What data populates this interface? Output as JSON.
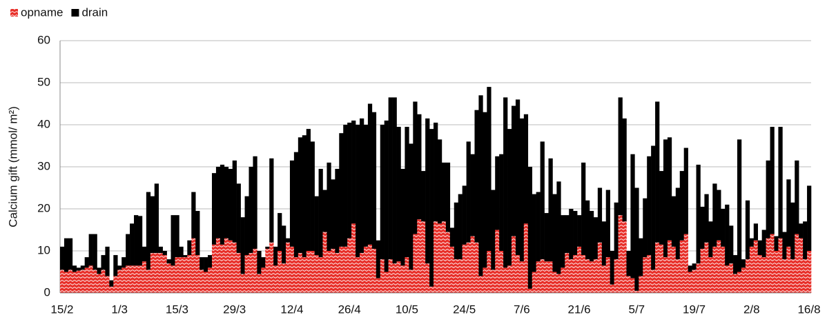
{
  "chart_data": {
    "type": "stacked_bar",
    "y_label": "Calcium gift (mmol/ m²)",
    "categories": [
      "15/2",
      null,
      null,
      null,
      null,
      null,
      null,
      null,
      null,
      null,
      null,
      null,
      null,
      null,
      "1/3",
      null,
      null,
      null,
      null,
      null,
      null,
      null,
      null,
      null,
      null,
      null,
      null,
      null,
      "15/3",
      null,
      null,
      null,
      null,
      null,
      null,
      null,
      null,
      null,
      null,
      null,
      null,
      null,
      "29/3",
      null,
      null,
      null,
      null,
      null,
      null,
      null,
      null,
      null,
      null,
      null,
      null,
      null,
      "12/4",
      null,
      null,
      null,
      null,
      null,
      null,
      null,
      null,
      null,
      null,
      null,
      null,
      null,
      "26/4",
      null,
      null,
      null,
      null,
      null,
      null,
      null,
      null,
      null,
      null,
      null,
      null,
      null,
      "10/5",
      null,
      null,
      null,
      null,
      null,
      null,
      null,
      null,
      null,
      null,
      null,
      null,
      null,
      "24/5",
      null,
      null,
      null,
      null,
      null,
      null,
      null,
      null,
      null,
      null,
      null,
      null,
      null,
      "7/6",
      null,
      null,
      null,
      null,
      null,
      null,
      null,
      null,
      null,
      null,
      null,
      null,
      null,
      "21/6",
      null,
      null,
      null,
      null,
      null,
      null,
      null,
      null,
      null,
      null,
      null,
      null,
      null,
      "5/7",
      null,
      null,
      null,
      null,
      null,
      null,
      null,
      null,
      null,
      null,
      null,
      null,
      null,
      "19/7",
      null,
      null,
      null,
      null,
      null,
      null,
      null,
      null,
      null,
      null,
      null,
      null,
      null,
      "2/8",
      null,
      null,
      null,
      null,
      null,
      null,
      null,
      null,
      null,
      null,
      null,
      null,
      null,
      "16/8"
    ],
    "series": [
      {
        "name": "opname",
        "color": "#e8302a",
        "values": [
          5.5,
          5,
          5.5,
          5,
          5.3,
          5.5,
          6,
          6.5,
          5.5,
          4.5,
          5.5,
          4,
          1.5,
          4,
          5.5,
          6,
          6.5,
          6.5,
          6.5,
          6.5,
          7.5,
          5.5,
          9.5,
          9.5,
          9.5,
          9,
          7,
          6.5,
          8.5,
          8.5,
          8.5,
          9,
          13,
          9,
          5.5,
          5,
          6,
          11.5,
          13,
          11.5,
          13,
          12.5,
          12,
          9.5,
          4.5,
          9,
          9.5,
          10.5,
          4.5,
          6,
          10.5,
          12,
          6.5,
          10,
          7,
          12,
          11,
          8.5,
          9.5,
          8.5,
          10,
          10,
          9,
          8.5,
          14.5,
          10,
          10.5,
          9.5,
          11,
          11,
          13,
          16.5,
          8.5,
          9.5,
          11,
          11.5,
          10.5,
          3.5,
          8,
          5,
          8,
          7,
          7.5,
          6.5,
          8.5,
          5.5,
          14,
          17.5,
          17,
          7,
          1.5,
          17,
          16.5,
          17,
          14.5,
          11,
          8,
          8,
          11.5,
          12,
          13.5,
          12,
          4,
          6,
          10,
          5.5,
          15,
          10,
          6,
          6.5,
          13.5,
          9,
          7.5,
          16.5,
          1,
          5,
          7.5,
          8,
          7.5,
          7.5,
          5,
          4.5,
          6,
          9.5,
          8,
          9,
          11,
          9,
          8,
          7.5,
          8,
          12,
          6.5,
          8.5,
          2,
          8,
          18.5,
          17,
          4,
          3.5,
          0.5,
          4,
          8.5,
          9,
          5.5,
          12,
          11.5,
          8.5,
          12.5,
          11,
          8,
          12.5,
          14,
          5,
          5.5,
          7,
          10.5,
          12,
          8.5,
          11,
          12.5,
          11,
          6.5,
          7,
          4.5,
          5,
          6,
          8,
          11,
          12.5,
          9,
          8.5,
          13,
          14,
          10,
          13,
          8,
          11,
          8,
          14,
          13,
          8,
          10
        ]
      },
      {
        "name": "drain",
        "color": "#000000",
        "values": [
          5.5,
          8,
          7.5,
          1.5,
          0.7,
          1,
          2.5,
          7.5,
          8.5,
          1.5,
          3.5,
          7,
          1.5,
          5,
          1,
          2.5,
          7.5,
          10,
          12,
          11.8,
          3.5,
          18.5,
          13.5,
          16.5,
          1.5,
          1,
          1,
          12,
          10,
          2.5,
          0.5,
          3.5,
          11,
          10.5,
          3,
          3.5,
          3,
          17,
          17,
          19,
          17,
          17,
          19.5,
          16.5,
          13.5,
          14,
          20.5,
          22,
          5.5,
          2.5,
          0.5,
          20,
          4.5,
          9,
          9,
          1,
          20.5,
          25,
          27.5,
          29,
          29,
          26,
          14,
          21,
          10,
          21,
          16.5,
          20,
          27,
          29,
          27.5,
          24.5,
          31.5,
          32,
          29,
          33.5,
          32.5,
          9,
          32,
          36,
          38.5,
          39.5,
          32,
          23,
          31,
          30,
          31.5,
          25,
          12,
          34.5,
          37.5,
          23.5,
          20,
          14,
          16.5,
          4.5,
          13.5,
          15.5,
          14,
          24,
          19.5,
          31.5,
          43,
          37,
          39,
          19,
          17.5,
          23,
          40.5,
          32.5,
          31,
          37,
          34,
          26,
          29,
          18.5,
          16.5,
          28,
          11.5,
          24.5,
          18.5,
          22,
          12.5,
          9,
          12,
          10.5,
          7.5,
          22,
          14,
          12,
          10,
          13,
          10.5,
          16,
          8,
          13.5,
          28,
          24.5,
          6,
          29.5,
          24.5,
          9,
          14,
          23.5,
          29.5,
          33.5,
          17.5,
          28,
          24.5,
          12,
          17,
          16.5,
          20.5,
          1.5,
          1.5,
          23.5,
          10,
          11.5,
          8.5,
          15,
          12,
          9,
          14.5,
          9,
          4.5,
          31.5,
          2,
          14,
          2,
          4,
          3.5,
          6.5,
          18.5,
          25.5,
          3.5,
          26.5,
          6.5,
          16,
          13.5,
          17.5,
          3.5,
          9,
          15.5
        ]
      }
    ],
    "ylim": [
      0,
      60
    ],
    "yticks": [
      0,
      10,
      20,
      30,
      40,
      50,
      60
    ],
    "grid": true
  }
}
